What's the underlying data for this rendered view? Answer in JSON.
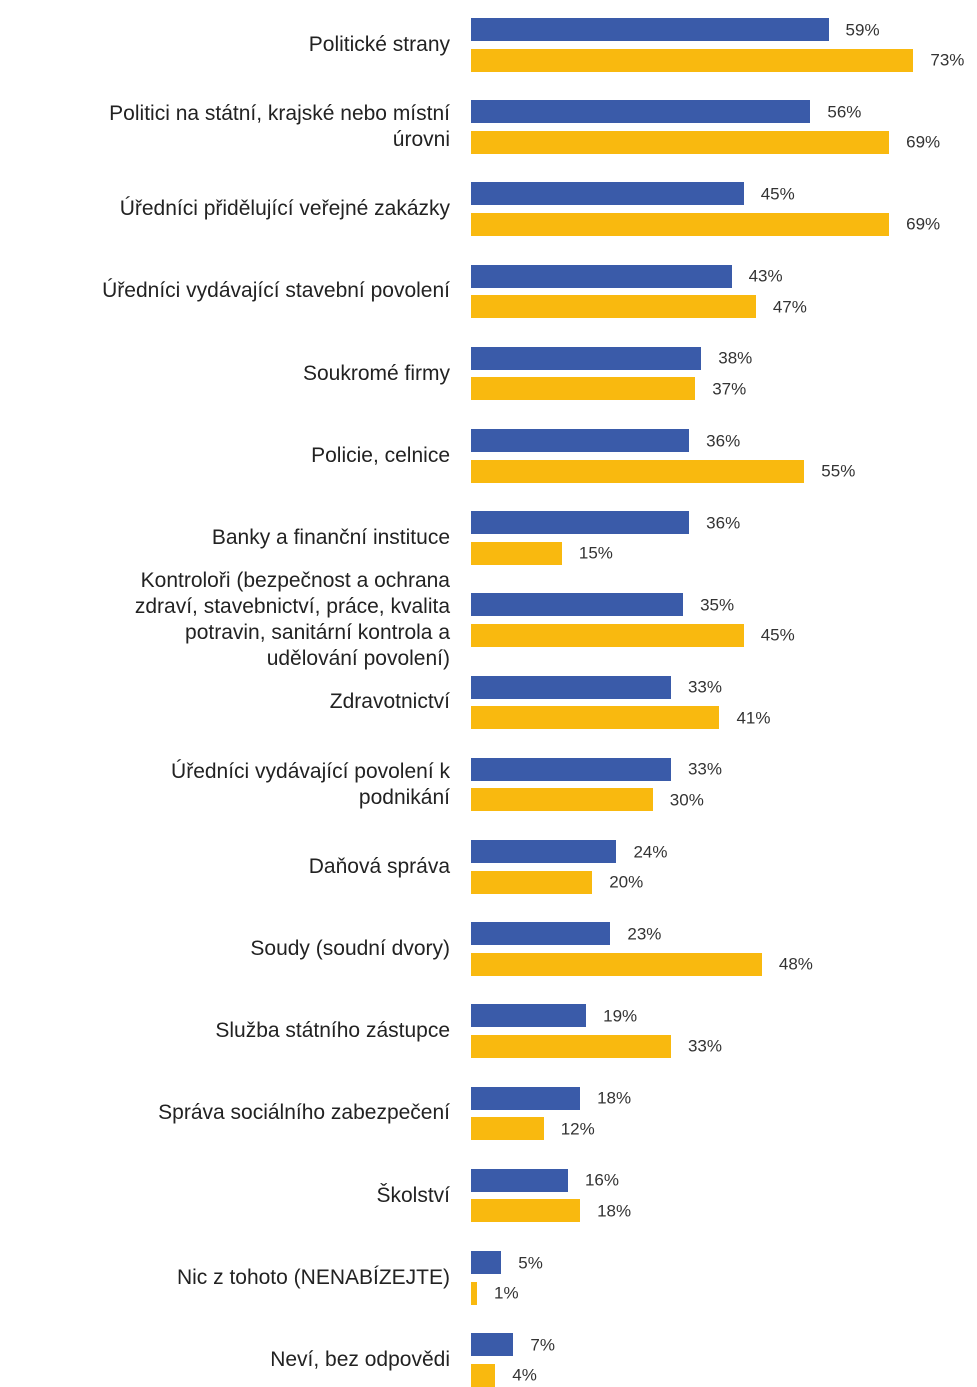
{
  "chart_data": {
    "type": "bar",
    "orientation": "horizontal",
    "grid": false,
    "legend": "none",
    "xlim": [
      0,
      73
    ],
    "categories": [
      "Politické strany",
      "Politici na státní, krajské nebo místní\núrovni",
      "Úředníci přidělující veřejné zakázky",
      "Úředníci vydávající stavební povolení",
      "Soukromé firmy",
      "Policie, celnice",
      "Banky a finanční instituce",
      "Kontroloři (bezpečnost a ochrana\nzdraví, stavebnictví, práce, kvalita\npotravin, sanitární kontrola a\nudělování povolení)",
      "Zdravotnictví",
      "Úředníci vydávající povolení k\npodnikání",
      "Daňová správa",
      "Soudy (soudní dvory)",
      "Služba státního zástupce",
      "Správa sociálního zabezpečení",
      "Školství",
      "Nic z tohoto (NENABÍZEJTE)",
      "Neví, bez odpovědi"
    ],
    "series": [
      {
        "color": "#3A5BA9",
        "values": [
          59,
          56,
          45,
          43,
          38,
          36,
          36,
          35,
          33,
          33,
          24,
          23,
          19,
          18,
          16,
          5,
          7
        ],
        "labels": [
          "59%",
          "56%",
          "45%",
          "43%",
          "38%",
          "36%",
          "36%",
          "35%",
          "33%",
          "33%",
          "24%",
          "23%",
          "19%",
          "18%",
          "16%",
          "5%",
          "7%"
        ]
      },
      {
        "color": "#F9B90F",
        "values": [
          73,
          69,
          69,
          47,
          37,
          55,
          15,
          45,
          41,
          30,
          20,
          48,
          33,
          12,
          18,
          1,
          4
        ],
        "labels": [
          "73%",
          "69%",
          "69%",
          "47%",
          "37%",
          "55%",
          "15%",
          "45%",
          "41%",
          "30%",
          "20%",
          "48%",
          "33%",
          "12%",
          "18%",
          "1%",
          "4%"
        ]
      }
    ]
  }
}
